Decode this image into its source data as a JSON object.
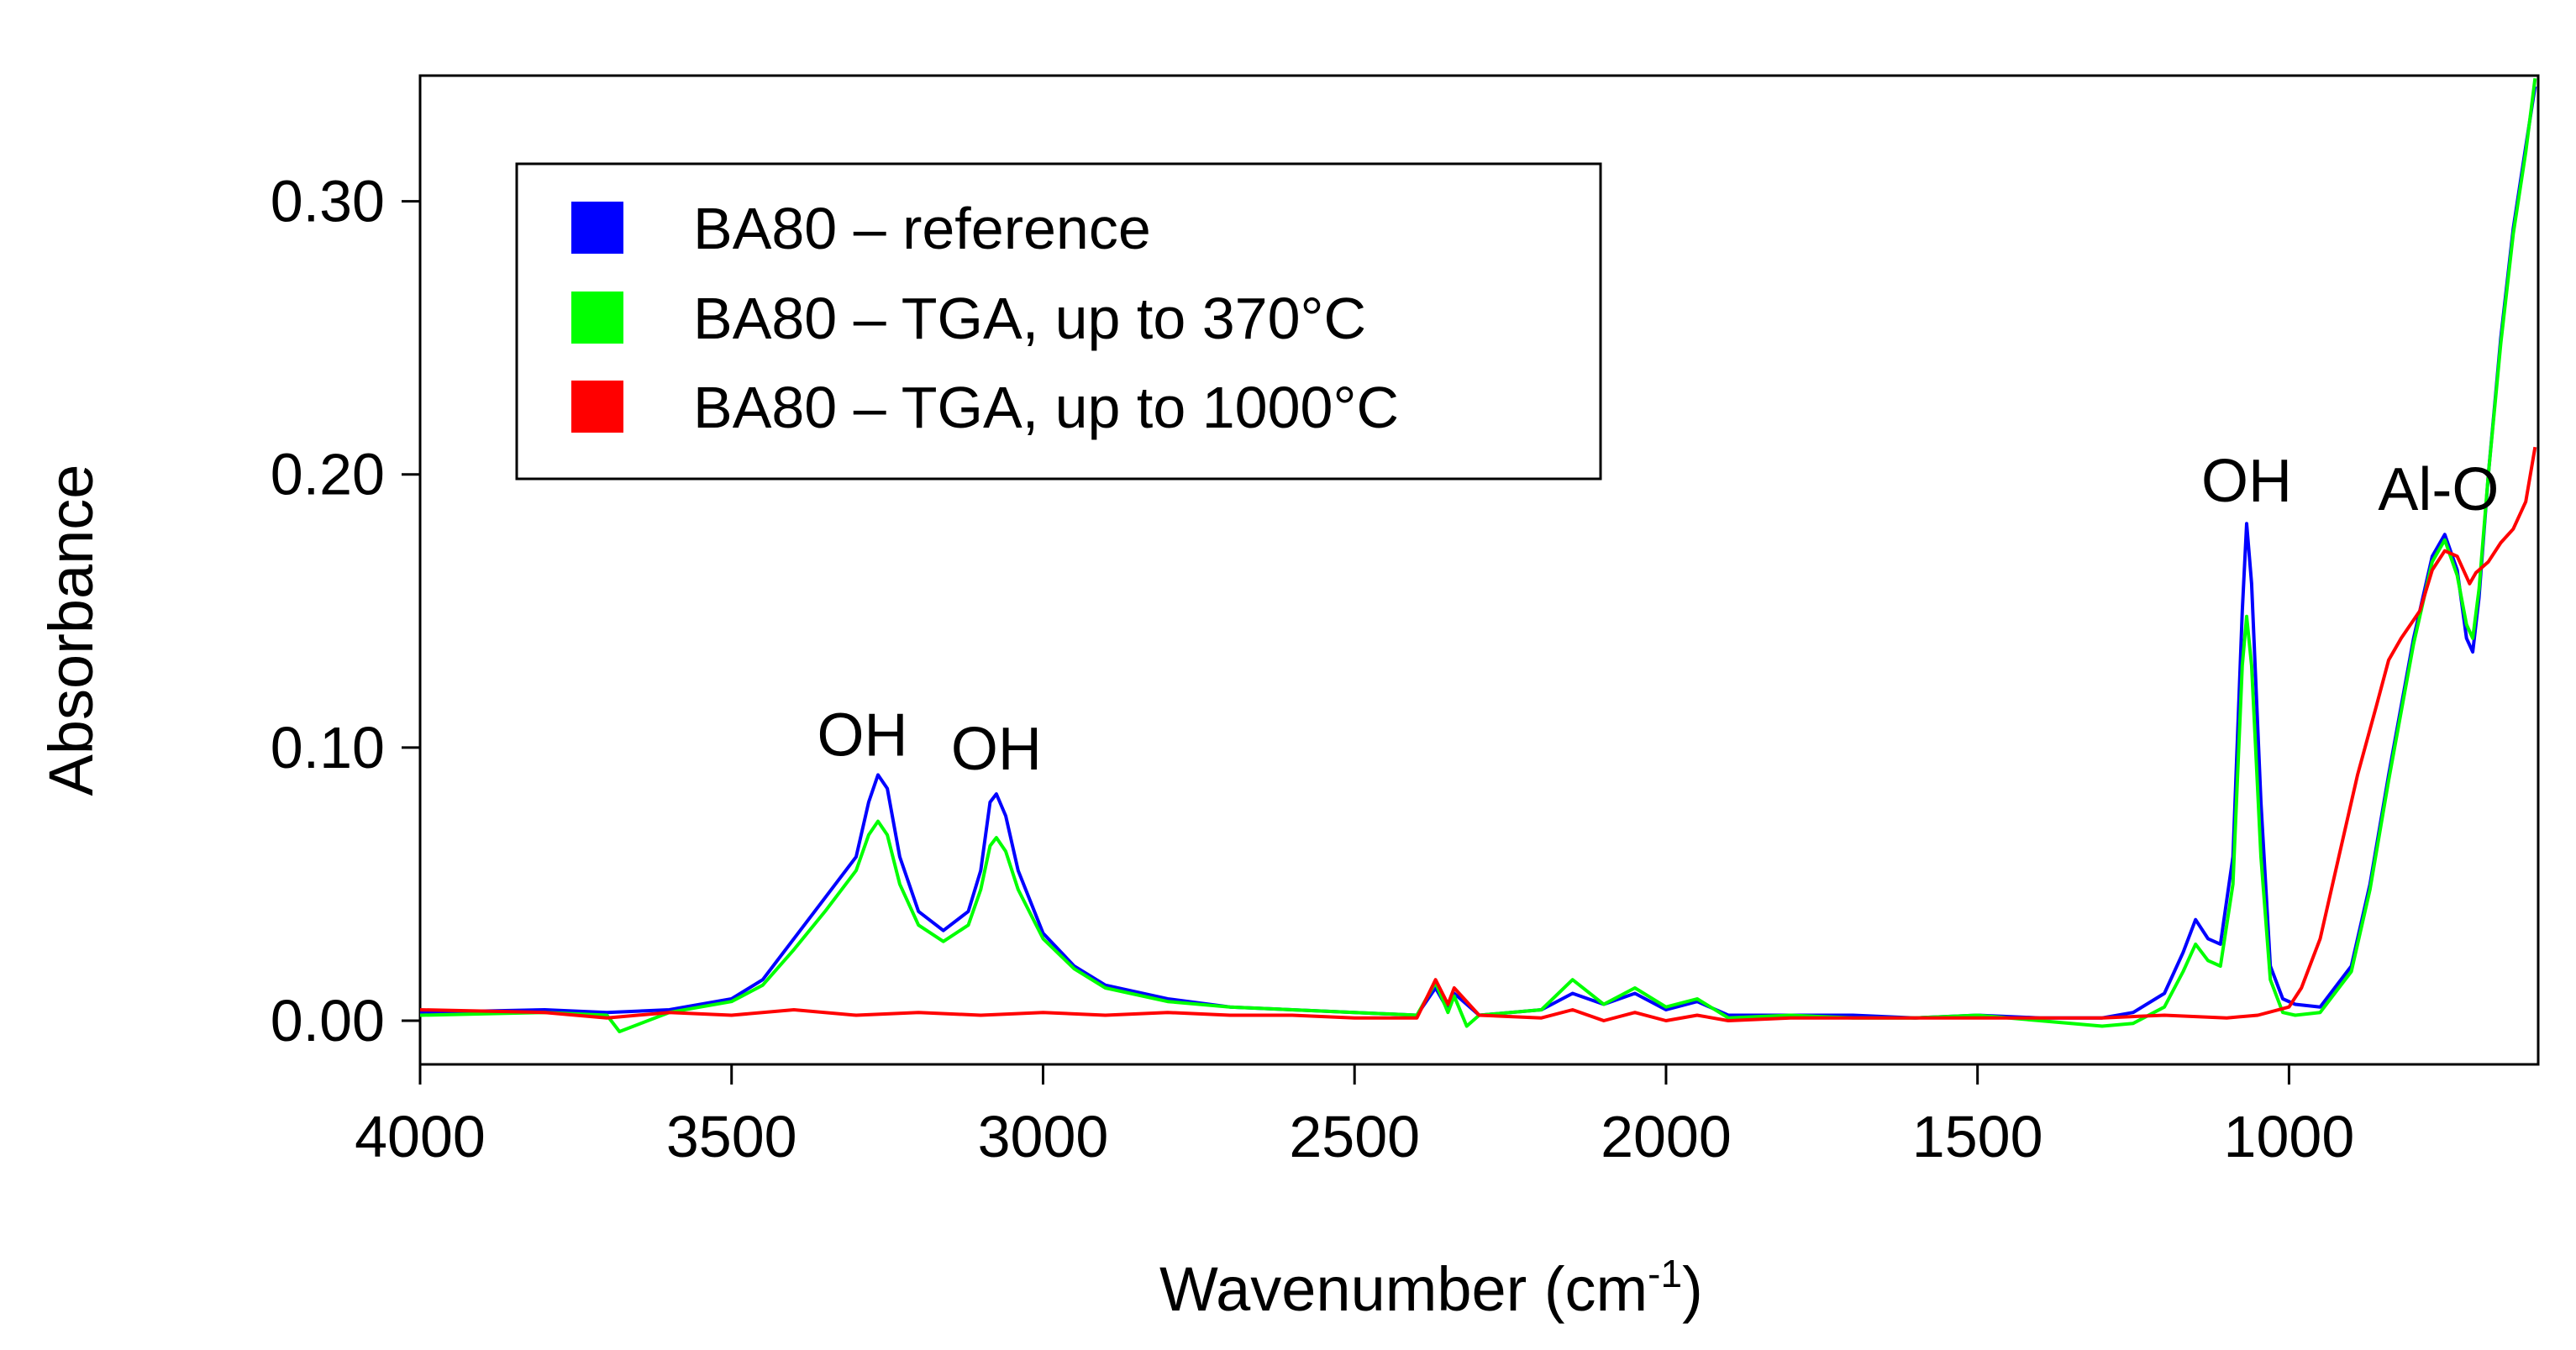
{
  "chart_data": {
    "type": "line",
    "title": "",
    "xlabel": "Wavenumber (cm",
    "xlabel_sup": "-1",
    "xlabel_suffix": ")",
    "ylabel": "Absorbance",
    "xlim": [
      4000,
      600
    ],
    "ylim": [
      -0.016,
      0.346
    ],
    "x_ticks": [
      4000,
      3500,
      3000,
      2500,
      2000,
      1500,
      1000
    ],
    "x_tick_labels": [
      "4000",
      "3500",
      "3000",
      "2500",
      "2000",
      "1500",
      "1000"
    ],
    "y_ticks": [
      0.0,
      0.1,
      0.2,
      0.3
    ],
    "y_tick_labels": [
      "0.00",
      "0.10",
      "0.20",
      "0.30"
    ],
    "grid": false,
    "legend_position": "top-left",
    "series": [
      {
        "name": "BA80 – reference",
        "color": "#0000ff",
        "points": [
          [
            4000,
            0.003
          ],
          [
            3800,
            0.004
          ],
          [
            3700,
            0.003
          ],
          [
            3600,
            0.004
          ],
          [
            3500,
            0.008
          ],
          [
            3450,
            0.015
          ],
          [
            3400,
            0.03
          ],
          [
            3350,
            0.045
          ],
          [
            3300,
            0.06
          ],
          [
            3280,
            0.08
          ],
          [
            3265,
            0.09
          ],
          [
            3250,
            0.085
          ],
          [
            3230,
            0.06
          ],
          [
            3200,
            0.04
          ],
          [
            3160,
            0.033
          ],
          [
            3120,
            0.04
          ],
          [
            3100,
            0.055
          ],
          [
            3085,
            0.08
          ],
          [
            3075,
            0.083
          ],
          [
            3060,
            0.075
          ],
          [
            3040,
            0.055
          ],
          [
            3000,
            0.032
          ],
          [
            2950,
            0.02
          ],
          [
            2900,
            0.013
          ],
          [
            2800,
            0.008
          ],
          [
            2700,
            0.005
          ],
          [
            2600,
            0.004
          ],
          [
            2500,
            0.003
          ],
          [
            2400,
            0.002
          ],
          [
            2370,
            0.012
          ],
          [
            2350,
            0.004
          ],
          [
            2340,
            0.01
          ],
          [
            2300,
            0.002
          ],
          [
            2200,
            0.004
          ],
          [
            2150,
            0.01
          ],
          [
            2100,
            0.006
          ],
          [
            2050,
            0.01
          ],
          [
            2000,
            0.004
          ],
          [
            1950,
            0.007
          ],
          [
            1900,
            0.002
          ],
          [
            1800,
            0.002
          ],
          [
            1700,
            0.002
          ],
          [
            1600,
            0.001
          ],
          [
            1500,
            0.002
          ],
          [
            1400,
            0.001
          ],
          [
            1300,
            0.001
          ],
          [
            1250,
            0.003
          ],
          [
            1200,
            0.01
          ],
          [
            1170,
            0.025
          ],
          [
            1150,
            0.037
          ],
          [
            1130,
            0.03
          ],
          [
            1110,
            0.028
          ],
          [
            1090,
            0.06
          ],
          [
            1075,
            0.15
          ],
          [
            1068,
            0.182
          ],
          [
            1060,
            0.16
          ],
          [
            1045,
            0.08
          ],
          [
            1030,
            0.02
          ],
          [
            1010,
            0.008
          ],
          [
            990,
            0.006
          ],
          [
            950,
            0.005
          ],
          [
            900,
            0.02
          ],
          [
            870,
            0.05
          ],
          [
            840,
            0.09
          ],
          [
            800,
            0.14
          ],
          [
            770,
            0.17
          ],
          [
            750,
            0.178
          ],
          [
            730,
            0.165
          ],
          [
            715,
            0.14
          ],
          [
            705,
            0.135
          ],
          [
            695,
            0.155
          ],
          [
            680,
            0.2
          ],
          [
            660,
            0.25
          ],
          [
            640,
            0.29
          ],
          [
            620,
            0.32
          ],
          [
            605,
            0.342
          ]
        ]
      },
      {
        "name": "BA80 – TGA, up to 370°C",
        "color": "#00ff00",
        "points": [
          [
            4000,
            0.002
          ],
          [
            3800,
            0.003
          ],
          [
            3700,
            0.002
          ],
          [
            3680,
            -0.004
          ],
          [
            3600,
            0.003
          ],
          [
            3500,
            0.007
          ],
          [
            3450,
            0.013
          ],
          [
            3400,
            0.026
          ],
          [
            3350,
            0.04
          ],
          [
            3300,
            0.055
          ],
          [
            3280,
            0.068
          ],
          [
            3265,
            0.073
          ],
          [
            3250,
            0.068
          ],
          [
            3230,
            0.05
          ],
          [
            3200,
            0.035
          ],
          [
            3160,
            0.029
          ],
          [
            3120,
            0.035
          ],
          [
            3100,
            0.048
          ],
          [
            3085,
            0.064
          ],
          [
            3075,
            0.067
          ],
          [
            3060,
            0.062
          ],
          [
            3040,
            0.048
          ],
          [
            3000,
            0.03
          ],
          [
            2950,
            0.019
          ],
          [
            2900,
            0.012
          ],
          [
            2800,
            0.007
          ],
          [
            2700,
            0.005
          ],
          [
            2600,
            0.004
          ],
          [
            2500,
            0.003
          ],
          [
            2400,
            0.002
          ],
          [
            2370,
            0.014
          ],
          [
            2350,
            0.003
          ],
          [
            2340,
            0.009
          ],
          [
            2320,
            -0.002
          ],
          [
            2300,
            0.002
          ],
          [
            2200,
            0.004
          ],
          [
            2150,
            0.015
          ],
          [
            2100,
            0.006
          ],
          [
            2050,
            0.012
          ],
          [
            2000,
            0.005
          ],
          [
            1950,
            0.008
          ],
          [
            1900,
            0.001
          ],
          [
            1800,
            0.002
          ],
          [
            1700,
            0.001
          ],
          [
            1600,
            0.001
          ],
          [
            1500,
            0.002
          ],
          [
            1400,
            0.0
          ],
          [
            1300,
            -0.002
          ],
          [
            1250,
            -0.001
          ],
          [
            1200,
            0.005
          ],
          [
            1170,
            0.018
          ],
          [
            1150,
            0.028
          ],
          [
            1130,
            0.022
          ],
          [
            1110,
            0.02
          ],
          [
            1090,
            0.05
          ],
          [
            1075,
            0.13
          ],
          [
            1068,
            0.148
          ],
          [
            1060,
            0.13
          ],
          [
            1045,
            0.06
          ],
          [
            1030,
            0.015
          ],
          [
            1010,
            0.003
          ],
          [
            990,
            0.002
          ],
          [
            950,
            0.003
          ],
          [
            900,
            0.018
          ],
          [
            870,
            0.048
          ],
          [
            840,
            0.088
          ],
          [
            800,
            0.138
          ],
          [
            770,
            0.168
          ],
          [
            750,
            0.176
          ],
          [
            730,
            0.163
          ],
          [
            715,
            0.145
          ],
          [
            705,
            0.14
          ],
          [
            695,
            0.158
          ],
          [
            680,
            0.2
          ],
          [
            660,
            0.248
          ],
          [
            640,
            0.288
          ],
          [
            620,
            0.318
          ],
          [
            605,
            0.345
          ]
        ]
      },
      {
        "name": "BA80 – TGA, up to 1000°C",
        "color": "#ff0000",
        "points": [
          [
            4000,
            0.004
          ],
          [
            3800,
            0.003
          ],
          [
            3700,
            0.001
          ],
          [
            3600,
            0.003
          ],
          [
            3500,
            0.002
          ],
          [
            3400,
            0.004
          ],
          [
            3300,
            0.002
          ],
          [
            3200,
            0.003
          ],
          [
            3100,
            0.002
          ],
          [
            3000,
            0.003
          ],
          [
            2900,
            0.002
          ],
          [
            2800,
            0.003
          ],
          [
            2700,
            0.002
          ],
          [
            2600,
            0.002
          ],
          [
            2500,
            0.001
          ],
          [
            2400,
            0.001
          ],
          [
            2370,
            0.015
          ],
          [
            2350,
            0.006
          ],
          [
            2340,
            0.012
          ],
          [
            2300,
            0.002
          ],
          [
            2200,
            0.001
          ],
          [
            2150,
            0.004
          ],
          [
            2100,
            0.0
          ],
          [
            2050,
            0.003
          ],
          [
            2000,
            0.0
          ],
          [
            1950,
            0.002
          ],
          [
            1900,
            0.0
          ],
          [
            1800,
            0.001
          ],
          [
            1700,
            0.001
          ],
          [
            1600,
            0.001
          ],
          [
            1500,
            0.001
          ],
          [
            1400,
            0.001
          ],
          [
            1300,
            0.001
          ],
          [
            1200,
            0.002
          ],
          [
            1100,
            0.001
          ],
          [
            1050,
            0.002
          ],
          [
            1000,
            0.005
          ],
          [
            980,
            0.012
          ],
          [
            950,
            0.03
          ],
          [
            920,
            0.06
          ],
          [
            890,
            0.09
          ],
          [
            860,
            0.115
          ],
          [
            840,
            0.132
          ],
          [
            820,
            0.14
          ],
          [
            790,
            0.15
          ],
          [
            770,
            0.165
          ],
          [
            750,
            0.172
          ],
          [
            730,
            0.17
          ],
          [
            710,
            0.16
          ],
          [
            700,
            0.164
          ],
          [
            680,
            0.168
          ],
          [
            660,
            0.175
          ],
          [
            640,
            0.18
          ],
          [
            620,
            0.19
          ],
          [
            605,
            0.21
          ]
        ]
      }
    ],
    "annotations": [
      {
        "text": "OH",
        "x": 3290,
        "y": 0.097
      },
      {
        "text": "OH",
        "x": 3075,
        "y": 0.092
      },
      {
        "text": "OH",
        "x": 1068,
        "y": 0.19
      },
      {
        "text": "Al-O",
        "x": 760,
        "y": 0.187
      }
    ]
  }
}
